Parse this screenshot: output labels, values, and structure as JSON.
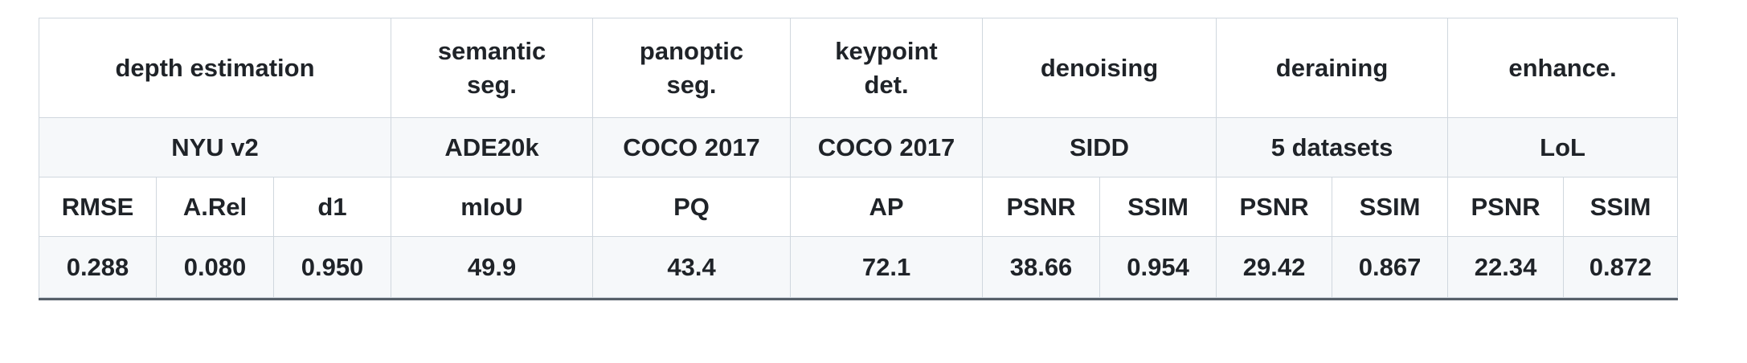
{
  "tasks": [
    {
      "label": "depth estimation",
      "lines": [
        "depth estimation"
      ],
      "span": 3
    },
    {
      "label": "semantic seg.",
      "lines": [
        "semantic",
        "seg."
      ],
      "span": 1
    },
    {
      "label": "panoptic seg.",
      "lines": [
        "panoptic",
        "seg."
      ],
      "span": 1
    },
    {
      "label": "keypoint det.",
      "lines": [
        "keypoint",
        "det."
      ],
      "span": 1
    },
    {
      "label": "denoising",
      "lines": [
        "denoising"
      ],
      "span": 2
    },
    {
      "label": "deraining",
      "lines": [
        "deraining"
      ],
      "span": 2
    },
    {
      "label": "enhance.",
      "lines": [
        "enhance."
      ],
      "span": 2
    }
  ],
  "datasets": [
    {
      "label": "NYU v2",
      "span": 3
    },
    {
      "label": "ADE20k",
      "span": 1
    },
    {
      "label": "COCO 2017",
      "span": 1
    },
    {
      "label": "COCO 2017",
      "span": 1
    },
    {
      "label": "SIDD",
      "span": 2
    },
    {
      "label": "5 datasets",
      "span": 2
    },
    {
      "label": "LoL",
      "span": 2
    }
  ],
  "metrics": [
    "RMSE",
    "A.Rel",
    "d1",
    "mIoU",
    "PQ",
    "AP",
    "PSNR",
    "SSIM",
    "PSNR",
    "SSIM",
    "PSNR",
    "SSIM"
  ],
  "values": [
    "0.288",
    "0.080",
    "0.950",
    "49.9",
    "43.4",
    "72.1",
    "38.66",
    "0.954",
    "29.42",
    "0.867",
    "22.34",
    "0.872"
  ]
}
